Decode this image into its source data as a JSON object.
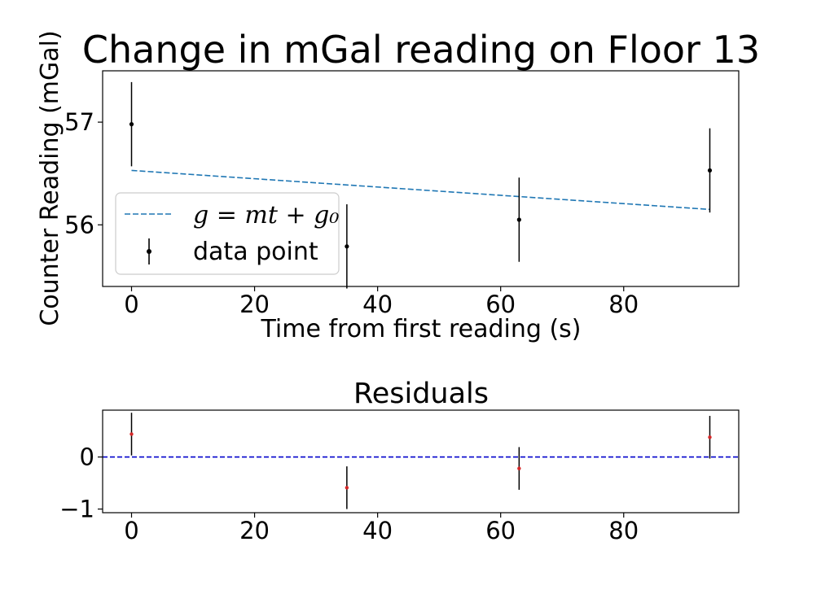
{
  "chart_data": [
    {
      "type": "scatter",
      "title": "Change in mGal reading on Floor 13",
      "xlabel": "Time from first reading (s)",
      "ylabel": "Counter Reading (mGal)",
      "xlim": [
        -4.7,
        98.7
      ],
      "ylim": [
        55.4,
        57.5
      ],
      "xticks": [
        0,
        20,
        40,
        60,
        80
      ],
      "yticks": [
        56,
        57
      ],
      "xtick_labels": [
        "0",
        "20",
        "40",
        "60",
        "80"
      ],
      "ytick_labels": [
        "56",
        "57"
      ],
      "grid": false,
      "legend_position": "lower-left",
      "legend": {
        "fit_label": "g = mt + g₀",
        "data_label": "data point"
      },
      "series": [
        {
          "name": "data point",
          "kind": "errorbar",
          "color": "#000000",
          "x": [
            0,
            35,
            63,
            94
          ],
          "y": [
            56.98,
            55.79,
            56.05,
            56.53
          ],
          "yerr": [
            0.41,
            0.41,
            0.41,
            0.41
          ]
        },
        {
          "name": "g = mt + g₀",
          "kind": "line",
          "style": "dashed",
          "color": "#1f77b4",
          "x": [
            0,
            94
          ],
          "y": [
            56.53,
            56.15
          ]
        }
      ]
    },
    {
      "type": "scatter",
      "title": "Residuals",
      "xlabel": "",
      "ylabel": "",
      "xlim": [
        -4.7,
        98.7
      ],
      "ylim": [
        -1.07,
        0.9
      ],
      "xticks": [
        0,
        20,
        40,
        60,
        80
      ],
      "yticks": [
        -1,
        0
      ],
      "xtick_labels": [
        "0",
        "20",
        "40",
        "60",
        "80"
      ],
      "ytick_labels": [
        "−1",
        "0"
      ],
      "grid": false,
      "series": [
        {
          "kind": "errorbar",
          "marker_color": "#d62728",
          "bar_color": "#000000",
          "x": [
            0,
            35,
            63,
            94
          ],
          "y": [
            0.44,
            -0.59,
            -0.22,
            0.38
          ],
          "yerr": [
            0.41,
            0.41,
            0.41,
            0.41
          ]
        },
        {
          "kind": "hline",
          "style": "dashed",
          "color": "#0000cc",
          "y": 0
        }
      ]
    }
  ]
}
